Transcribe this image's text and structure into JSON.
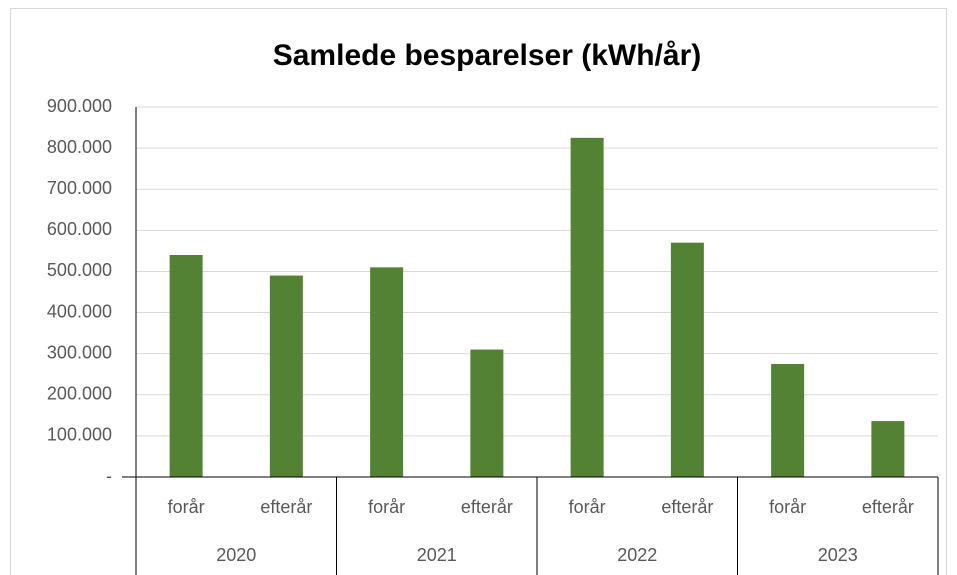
{
  "chart_data": {
    "type": "bar",
    "title": "Samlede besparelser (kWh/år)",
    "categories": [
      "forår",
      "efterår",
      "forår",
      "efterår",
      "forår",
      "efterår",
      "forår",
      "efterår"
    ],
    "groups": [
      "2020",
      "2021",
      "2022",
      "2023"
    ],
    "values": [
      540000,
      490000,
      510000,
      310000,
      825000,
      570000,
      275000,
      136000
    ],
    "color": "#548235",
    "ylim": [
      0,
      900000
    ],
    "yticks": [
      {
        "value": 0,
        "label": "-"
      },
      {
        "value": 100000,
        "label": "100.000"
      },
      {
        "value": 200000,
        "label": "200.000"
      },
      {
        "value": 300000,
        "label": "300.000"
      },
      {
        "value": 400000,
        "label": "400.000"
      },
      {
        "value": 500000,
        "label": "500.000"
      },
      {
        "value": 600000,
        "label": "600.000"
      },
      {
        "value": 700000,
        "label": "700.000"
      },
      {
        "value": 800000,
        "label": "800.000"
      },
      {
        "value": 900000,
        "label": "900.000"
      }
    ],
    "grid": true
  }
}
